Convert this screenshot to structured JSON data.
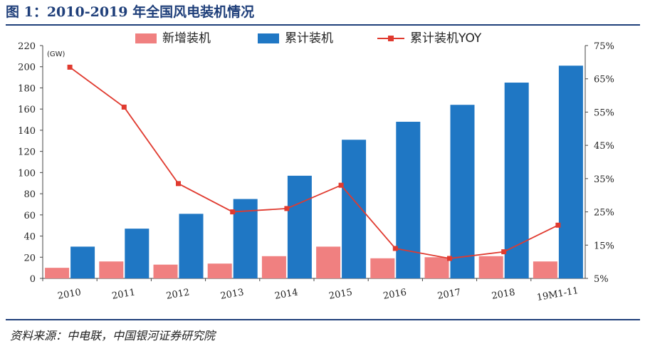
{
  "title": "图 1：2010-2019 年全国风电装机情况",
  "source": "资料来源：中电联，中国银河证券研究院",
  "chart_data": {
    "type": "bar",
    "categories": [
      "2010",
      "2011",
      "2012",
      "2013",
      "2014",
      "2015",
      "2016",
      "2017",
      "2018",
      "19M1-11"
    ],
    "series": [
      {
        "name": "新增装机",
        "type": "bar",
        "axis": "left",
        "color": "#f08080",
        "values": [
          10,
          16,
          13,
          14,
          21,
          30,
          19,
          20,
          21,
          16
        ]
      },
      {
        "name": "累计装机",
        "type": "bar",
        "axis": "left",
        "color": "#1f77c4",
        "values": [
          30,
          47,
          61,
          75,
          97,
          131,
          148,
          164,
          185,
          201
        ]
      },
      {
        "name": "累计装机YOY",
        "type": "line",
        "axis": "right",
        "color": "#e03a2f",
        "values": [
          68.5,
          56.5,
          33.5,
          25,
          26,
          33,
          14,
          11,
          13,
          21
        ]
      }
    ],
    "y_left": {
      "unit": "(GW)",
      "ylim": [
        0,
        220
      ],
      "ticks": [
        0,
        20,
        40,
        60,
        80,
        100,
        120,
        140,
        160,
        180,
        200,
        220
      ]
    },
    "y_right": {
      "ylim": [
        5,
        75
      ],
      "ticks": [
        "5%",
        "15%",
        "25%",
        "35%",
        "45%",
        "55%",
        "65%",
        "75%"
      ]
    },
    "legend": [
      "新增装机",
      "累计装机",
      "累计装机YOY"
    ],
    "legend_position": "top",
    "grid": false
  }
}
